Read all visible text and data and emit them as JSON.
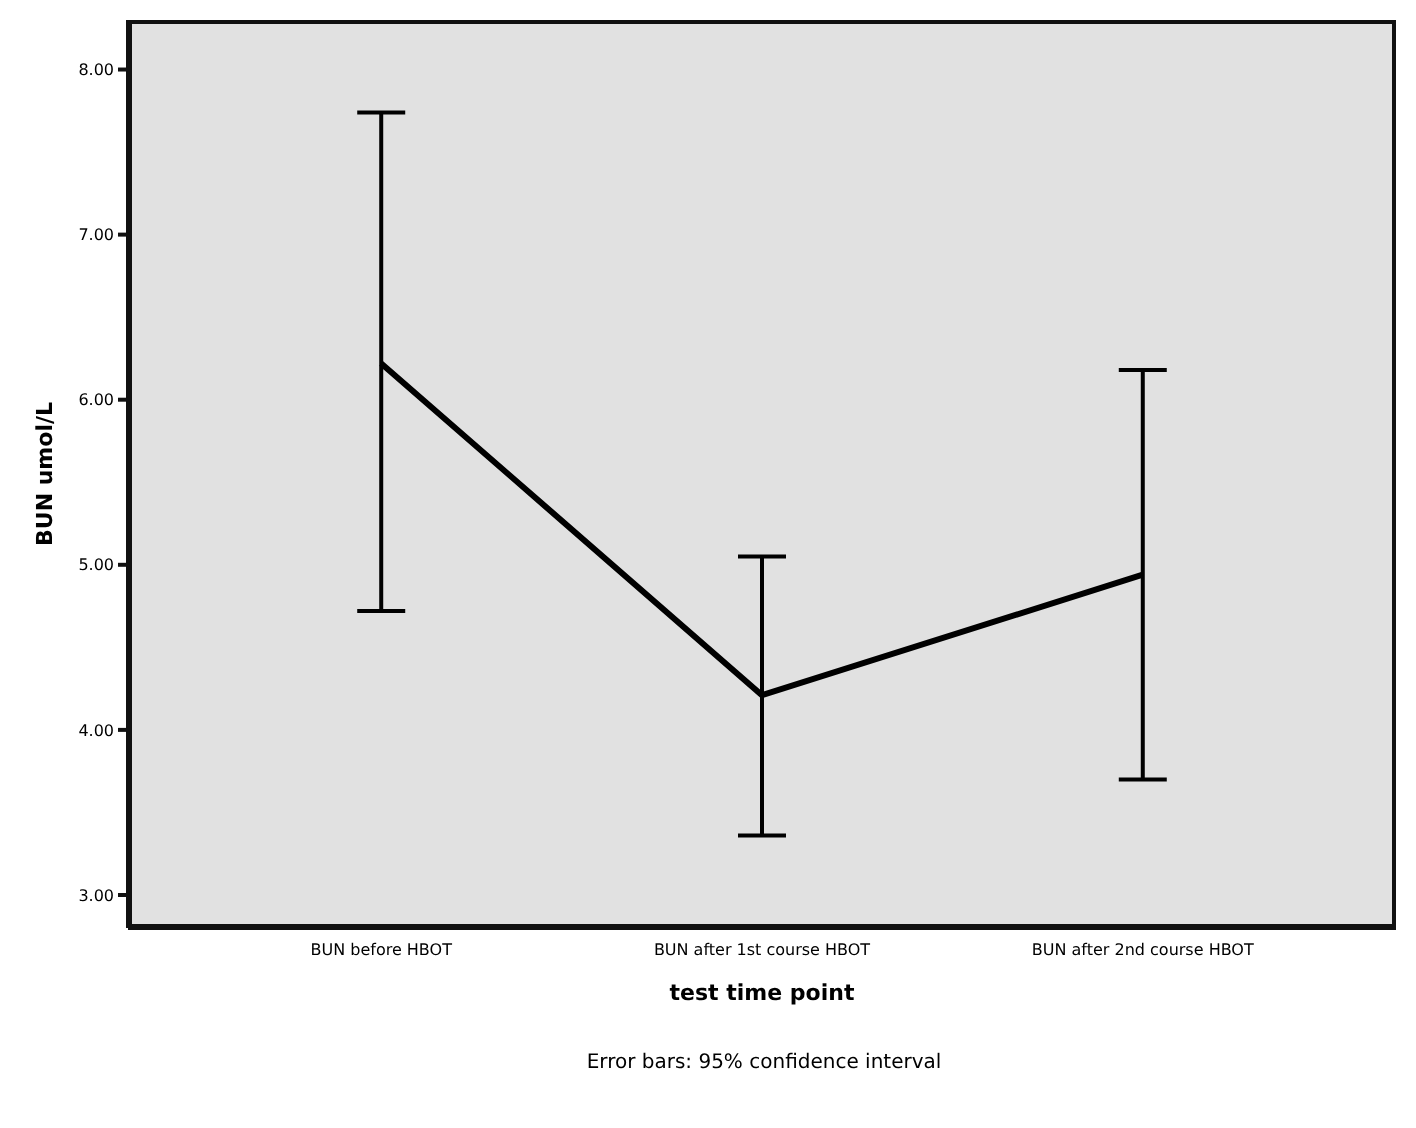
{
  "chart_data": {
    "type": "line",
    "xlabel": "test time point",
    "ylabel": "BUN umol/L",
    "categories": [
      "BUN before HBOT",
      "BUN after 1st course HBOT",
      "BUN after 2nd course HBOT"
    ],
    "color": "#000000",
    "values": [
      6.22,
      4.21,
      4.94
    ],
    "errors": [
      [
        4.72,
        7.74
      ],
      [
        3.36,
        5.05
      ],
      [
        3.7,
        6.18
      ]
    ],
    "ylim": [
      2.8,
      8.3
    ],
    "yticks": [
      {
        "value": 3,
        "label": "3.00"
      },
      {
        "value": 4,
        "label": "4.00"
      },
      {
        "value": 5,
        "label": "5.00"
      },
      {
        "value": 6,
        "label": "6.00"
      },
      {
        "value": 7,
        "label": "7.00"
      },
      {
        "value": 8,
        "label": "8.00"
      }
    ],
    "grid": false,
    "legend": false,
    "marker": "none",
    "line_style": "solid",
    "annotations": [
      "Error bars: 95% confidence interval"
    ]
  }
}
